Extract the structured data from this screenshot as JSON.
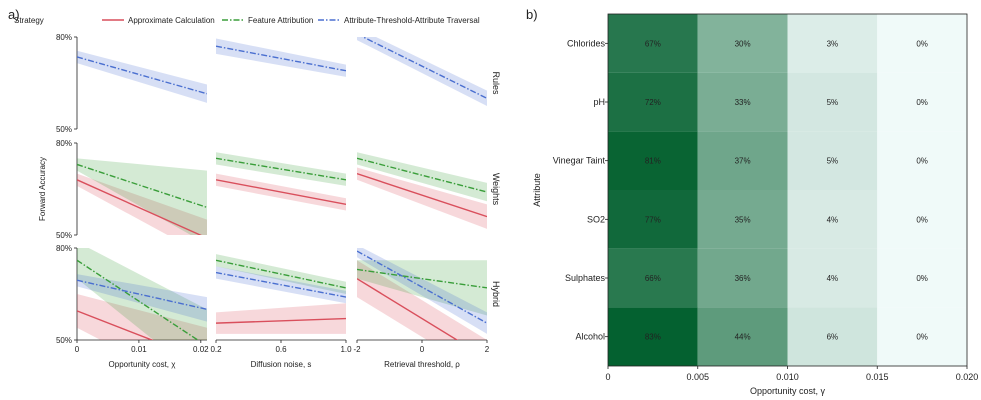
{
  "panel_a_letter": "a)",
  "panel_b_letter": "b)",
  "chart_data": [
    {
      "type": "line",
      "title": "",
      "ylabel": "Forward Accuracy",
      "ylim": [
        50,
        80
      ],
      "ytick_labels": [
        "80%",
        "50%"
      ],
      "legend": {
        "title": "Strategy",
        "placement": "top",
        "entries": [
          {
            "name": "Approximate Calculation",
            "color": "#d94f5c",
            "dash": "solid"
          },
          {
            "name": "Feature Attribution",
            "color": "#3a9e3a",
            "dash": "dashdot"
          },
          {
            "name": "Attribute-Threshold-Attribute Traversal",
            "color": "#4a6fd0",
            "dash": "dashdot"
          }
        ]
      },
      "columns": [
        {
          "xlabel": "Opportunity cost, χ",
          "xlim": [
            0,
            0.021
          ],
          "ticks": [
            0,
            0.01,
            0.02
          ],
          "tick_labels": [
            "0",
            "0.01",
            "0.02"
          ]
        },
        {
          "xlabel": "Diffusion noise, s",
          "xlim": [
            0.2,
            1.0
          ],
          "ticks": [
            0.2,
            0.6,
            1.0
          ],
          "tick_labels": [
            "0.2",
            "0.6",
            "1.0"
          ]
        },
        {
          "xlabel": "Retrieval threshold, ρ",
          "xlim": [
            -2,
            2
          ],
          "ticks": [
            -2,
            0,
            2
          ],
          "tick_labels": [
            "-2",
            "0",
            "2"
          ]
        }
      ],
      "rows": [
        "Rules",
        "Weights",
        "Hybrid"
      ],
      "panels": [
        {
          "row": 0,
          "col": 0,
          "series": [
            {
              "name": "Attribute-Threshold-Attribute Traversal",
              "x": [
                0,
                0.021
              ],
              "y": [
                73.5,
                61.5
              ],
              "lo": [
                71.5,
                58.5
              ],
              "hi": [
                75.5,
                64.5
              ]
            }
          ]
        },
        {
          "row": 0,
          "col": 1,
          "series": [
            {
              "name": "Attribute-Threshold-Attribute Traversal",
              "x": [
                0.2,
                1.0
              ],
              "y": [
                77,
                69
              ],
              "lo": [
                74.5,
                67
              ],
              "hi": [
                79.5,
                71
              ]
            }
          ]
        },
        {
          "row": 0,
          "col": 2,
          "series": [
            {
              "name": "Attribute-Threshold-Attribute Traversal",
              "x": [
                -2,
                2
              ],
              "y": [
                81,
                60
              ],
              "lo": [
                79,
                57.5
              ],
              "hi": [
                83,
                62.5
              ]
            }
          ]
        },
        {
          "row": 1,
          "col": 0,
          "series": [
            {
              "name": "Approximate Calculation",
              "x": [
                0,
                0.021
              ],
              "y": [
                68,
                49
              ],
              "lo": [
                66,
                43
              ],
              "hi": [
                70,
                55
              ]
            },
            {
              "name": "Feature Attribution",
              "x": [
                0,
                0.021
              ],
              "y": [
                73,
                59
              ],
              "lo": [
                71,
                47
              ],
              "hi": [
                75,
                71
              ]
            }
          ]
        },
        {
          "row": 1,
          "col": 1,
          "series": [
            {
              "name": "Approximate Calculation",
              "x": [
                0.2,
                1.0
              ],
              "y": [
                68,
                60
              ],
              "lo": [
                66,
                58
              ],
              "hi": [
                70,
                62
              ]
            },
            {
              "name": "Feature Attribution",
              "x": [
                0.2,
                1.0
              ],
              "y": [
                75,
                68
              ],
              "lo": [
                73,
                66
              ],
              "hi": [
                77,
                70
              ]
            }
          ]
        },
        {
          "row": 1,
          "col": 2,
          "series": [
            {
              "name": "Approximate Calculation",
              "x": [
                -2,
                2
              ],
              "y": [
                70,
                56
              ],
              "lo": [
                68,
                52
              ],
              "hi": [
                72,
                60
              ]
            },
            {
              "name": "Feature Attribution",
              "x": [
                -2,
                2
              ],
              "y": [
                75,
                64
              ],
              "lo": [
                73,
                61
              ],
              "hi": [
                77,
                67
              ]
            }
          ]
        },
        {
          "row": 2,
          "col": 0,
          "series": [
            {
              "name": "Approximate Calculation",
              "x": [
                0,
                0.021
              ],
              "y": [
                59.5,
                43
              ],
              "lo": [
                54,
                32
              ],
              "hi": [
                65,
                54
              ]
            },
            {
              "name": "Feature Attribution",
              "x": [
                0,
                0.021
              ],
              "y": [
                76,
                48
              ],
              "lo": [
                70,
                36
              ],
              "hi": [
                82,
                60
              ]
            },
            {
              "name": "Attribute-Threshold-Attribute Traversal",
              "x": [
                0,
                0.021
              ],
              "y": [
                69.5,
                60
              ],
              "lo": [
                67.5,
                56
              ],
              "hi": [
                71.5,
                64
              ]
            }
          ]
        },
        {
          "row": 2,
          "col": 1,
          "series": [
            {
              "name": "Approximate Calculation",
              "x": [
                0.2,
                1.0
              ],
              "y": [
                55.5,
                57
              ],
              "lo": [
                52,
                52
              ],
              "hi": [
                59,
                62
              ]
            },
            {
              "name": "Feature Attribution",
              "x": [
                0.2,
                1.0
              ],
              "y": [
                76,
                67
              ],
              "lo": [
                74,
                65
              ],
              "hi": [
                78,
                69
              ]
            },
            {
              "name": "Attribute-Threshold-Attribute Traversal",
              "x": [
                0.2,
                1.0
              ],
              "y": [
                72,
                64
              ],
              "lo": [
                70,
                62
              ],
              "hi": [
                74,
                66
              ]
            }
          ]
        },
        {
          "row": 2,
          "col": 2,
          "series": [
            {
              "name": "Approximate Calculation",
              "x": [
                -2,
                2
              ],
              "y": [
                70,
                44
              ],
              "lo": [
                64,
                38
              ],
              "hi": [
                76,
                50
              ]
            },
            {
              "name": "Feature Attribution",
              "x": [
                -2,
                2
              ],
              "y": [
                73,
                67
              ],
              "lo": [
                70,
                58
              ],
              "hi": [
                76,
                76
              ]
            },
            {
              "name": "Attribute-Threshold-Attribute Traversal",
              "x": [
                -2,
                2
              ],
              "y": [
                79,
                55.5
              ],
              "lo": [
                77,
                52
              ],
              "hi": [
                81,
                59
              ]
            }
          ]
        }
      ]
    },
    {
      "type": "heatmap",
      "title": "",
      "xlabel": "Opportunity cost, γ",
      "ylabel": "Attribute",
      "xlim": [
        0,
        0.02
      ],
      "x_tick_labels": [
        "0",
        "0.005",
        "0.010",
        "0.015",
        "0.020"
      ],
      "rows": [
        "Chlorides",
        "pH",
        "Vinegar Taint",
        "SO2",
        "Sulphates",
        "Alcohol"
      ],
      "values": [
        [
          67,
          30,
          3,
          0
        ],
        [
          72,
          33,
          5,
          0
        ],
        [
          81,
          37,
          5,
          0
        ],
        [
          77,
          35,
          4,
          0
        ],
        [
          66,
          36,
          4,
          0
        ],
        [
          83,
          44,
          6,
          0
        ]
      ],
      "value_labels": [
        [
          "67%",
          "30%",
          "3%",
          "0%"
        ],
        [
          "72%",
          "33%",
          "5%",
          "0%"
        ],
        [
          "81%",
          "37%",
          "5%",
          "0%"
        ],
        [
          "77%",
          "35%",
          "4%",
          "0%"
        ],
        [
          "66%",
          "36%",
          "4%",
          "0%"
        ],
        [
          "83%",
          "44%",
          "6%",
          "0%"
        ]
      ]
    }
  ]
}
